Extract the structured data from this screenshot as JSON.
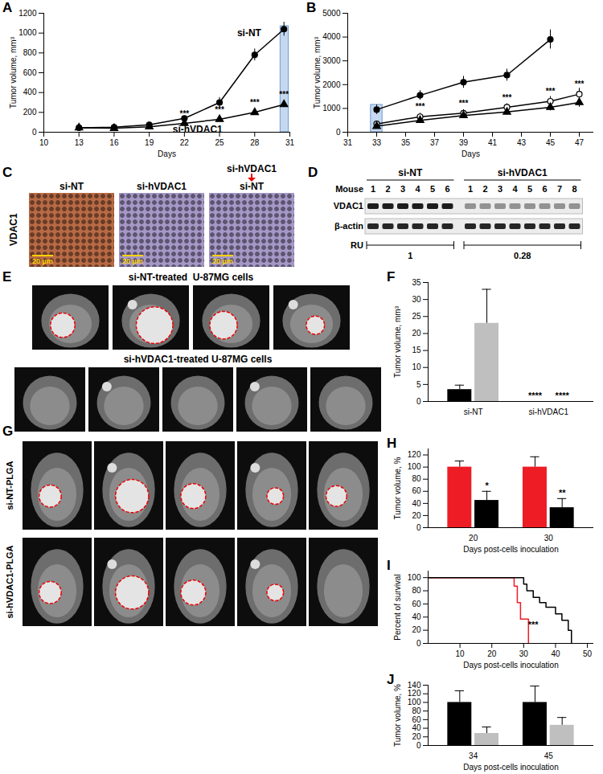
{
  "chart_data": [
    {
      "panel_label": "A",
      "type": "line",
      "x_label": "Days",
      "y_label": "Tumor volume, mm³",
      "xlim": [
        10,
        31
      ],
      "xticks": [
        10,
        13,
        16,
        19,
        22,
        25,
        28,
        31
      ],
      "ylim": [
        0,
        1200
      ],
      "yticks": [
        0,
        200,
        400,
        600,
        800,
        1000,
        1200
      ],
      "x": [
        13,
        16,
        19,
        22,
        25,
        28,
        30.5
      ],
      "highlight": {
        "x1": 30.2,
        "x2": 30.9,
        "y1": 0,
        "y2": 1070
      },
      "series": [
        {
          "name": "si-NT",
          "color": "#000000",
          "marker": "circle",
          "label_x": 26.5,
          "label_y": 1000,
          "values": [
            45,
            50,
            75,
            140,
            300,
            780,
            1040
          ],
          "errors": [
            5,
            6,
            10,
            20,
            50,
            60,
            70
          ]
        },
        {
          "name": "si-hVDAC1",
          "color": "#000000",
          "marker": "triangle",
          "label_x": 21,
          "label_y": 30,
          "values": [
            45,
            40,
            55,
            90,
            130,
            200,
            280
          ],
          "errors": [
            5,
            5,
            8,
            15,
            20,
            25,
            30
          ],
          "stars": [
            null,
            null,
            null,
            "***",
            "***",
            "***",
            "***"
          ]
        }
      ]
    },
    {
      "panel_label": "B",
      "type": "line",
      "x_label": "Days",
      "y_label": "Tumor volume, mm³",
      "xlim": [
        31,
        48
      ],
      "xticks": [
        31,
        33,
        35,
        37,
        39,
        41,
        43,
        45,
        47
      ],
      "ylim": [
        0,
        5000
      ],
      "yticks": [
        0,
        1000,
        2000,
        3000,
        4000,
        5000
      ],
      "x": [
        33,
        36,
        39,
        42,
        45,
        47
      ],
      "highlight": {
        "x1": 32.6,
        "x2": 33.4,
        "y1": 0,
        "y2": 1150
      },
      "series": [
        {
          "color": "#000000",
          "marker": "circle",
          "values": [
            950,
            1550,
            2100,
            2400,
            3900,
            null
          ],
          "errors": [
            200,
            200,
            250,
            250,
            400,
            null
          ]
        },
        {
          "color": "#000000",
          "marker": "circle-open",
          "values": [
            350,
            650,
            800,
            1050,
            1300,
            1600
          ],
          "errors": [
            100,
            150,
            150,
            150,
            200,
            250
          ],
          "stars": [
            null,
            "***",
            "***",
            "***",
            "***",
            "***"
          ]
        },
        {
          "color": "#000000",
          "marker": "triangle",
          "values": [
            250,
            500,
            700,
            850,
            1050,
            1250
          ],
          "errors": [
            80,
            100,
            120,
            120,
            150,
            200
          ]
        }
      ]
    },
    {
      "panel_label": "F",
      "type": "bar",
      "y_label": "Tumor volume, mm³",
      "categories": [
        "si-NT",
        "si-hVDAC1"
      ],
      "ylim": [
        0,
        35
      ],
      "yticks": [
        0,
        5,
        10,
        15,
        20,
        25,
        30,
        35
      ],
      "series": [
        {
          "color": "#000000",
          "values": [
            3.5,
            0
          ],
          "errors": [
            1.3,
            0
          ],
          "stars": [
            null,
            "****"
          ]
        },
        {
          "color": "#bfbfbf",
          "values": [
            23,
            0
          ],
          "errors": [
            10,
            0
          ],
          "stars": [
            null,
            "****"
          ]
        }
      ]
    },
    {
      "panel_label": "H",
      "type": "bar",
      "y_label": "Tumor volume, %",
      "x_label": "Days post-cells inoculation",
      "categories": [
        "20",
        "30"
      ],
      "ylim": [
        0,
        130
      ],
      "yticks": [
        0,
        20,
        40,
        60,
        80,
        100,
        120
      ],
      "series": [
        {
          "color": "#ee1c25",
          "values": [
            100,
            100
          ],
          "errors": [
            10,
            17
          ]
        },
        {
          "color": "#000000",
          "values": [
            45,
            33
          ],
          "errors": [
            15,
            15
          ],
          "stars": [
            "*",
            "**"
          ]
        }
      ]
    },
    {
      "panel_label": "I",
      "type": "line",
      "x_label": "Days post-cells inoculation",
      "y_label": "Percent of survival",
      "xlim": [
        0,
        52
      ],
      "xticks": [
        10,
        20,
        30,
        40,
        50
      ],
      "ylim": [
        0,
        110
      ],
      "yticks": [
        0,
        20,
        40,
        60,
        80,
        100
      ],
      "annotations": [
        {
          "x": 33,
          "y": 28,
          "text": "***"
        }
      ],
      "series": [
        {
          "color": "#ee1c25",
          "line_style": "step",
          "x": [
            0,
            27,
            28,
            29,
            31.5
          ],
          "values": [
            100,
            87,
            62,
            37,
            0
          ]
        },
        {
          "color": "#000000",
          "line_style": "step",
          "x": [
            0,
            30,
            31,
            33,
            35,
            37,
            40,
            42,
            44,
            45
          ],
          "values": [
            100,
            90,
            80,
            70,
            62,
            55,
            45,
            35,
            20,
            0
          ]
        }
      ]
    },
    {
      "panel_label": "J",
      "type": "bar",
      "y_label": "Tumor volume, %",
      "x_label": "Days post-cells inoculation",
      "categories": [
        "34",
        "45"
      ],
      "ylim": [
        0,
        140
      ],
      "yticks": [
        0,
        20,
        40,
        60,
        80,
        100,
        120,
        140
      ],
      "series": [
        {
          "color": "#000000",
          "values": [
            100,
            100
          ],
          "errors": [
            27,
            38
          ]
        },
        {
          "color": "#bfbfbf",
          "values": [
            28,
            47
          ],
          "errors": [
            15,
            18
          ]
        }
      ]
    }
  ],
  "figure": {
    "C": {
      "panel_label": "C",
      "row_label": "VDAC1",
      "scale_bar": "20 µm",
      "images": [
        {
          "label": "si-NT",
          "color": "#b86a45"
        },
        {
          "label": "si-hVDAC1",
          "color": "#a597c6"
        },
        {
          "label": "si-NT",
          "top_label": "si-hVDAC1",
          "color": "#a597c6"
        }
      ]
    },
    "D": {
      "panel_label": "D",
      "header": "Mouse",
      "rows": [
        "VDAC1",
        "β-actin"
      ],
      "ru_label": "RU",
      "ru_values": [
        1,
        0.28
      ],
      "groups": [
        {
          "label": "si-NT",
          "lanes": [
            "1",
            "2",
            "3",
            "4",
            "5",
            "6"
          ]
        },
        {
          "label": "si-hVDAC1",
          "lanes": [
            "1",
            "2",
            "3",
            "4",
            "5",
            "6",
            "7",
            "8"
          ]
        }
      ]
    },
    "E": {
      "panel_label": "E",
      "groups": [
        {
          "title": "si-NT-treated  U-87MG cells",
          "tumors": [
            true,
            true,
            true,
            true
          ]
        },
        {
          "title": "si-hVDAC1-treated U-87MG cells",
          "tumors": [
            false,
            false,
            false,
            false,
            false
          ]
        }
      ]
    },
    "G": {
      "panel_label": "G",
      "groups": [
        {
          "label": "si-NT-PLGA",
          "tumors": [
            true,
            true,
            true,
            true,
            true
          ]
        },
        {
          "label": "si-hVDAC1-PLGA",
          "tumors": [
            true,
            true,
            true,
            true,
            false
          ]
        }
      ]
    }
  }
}
